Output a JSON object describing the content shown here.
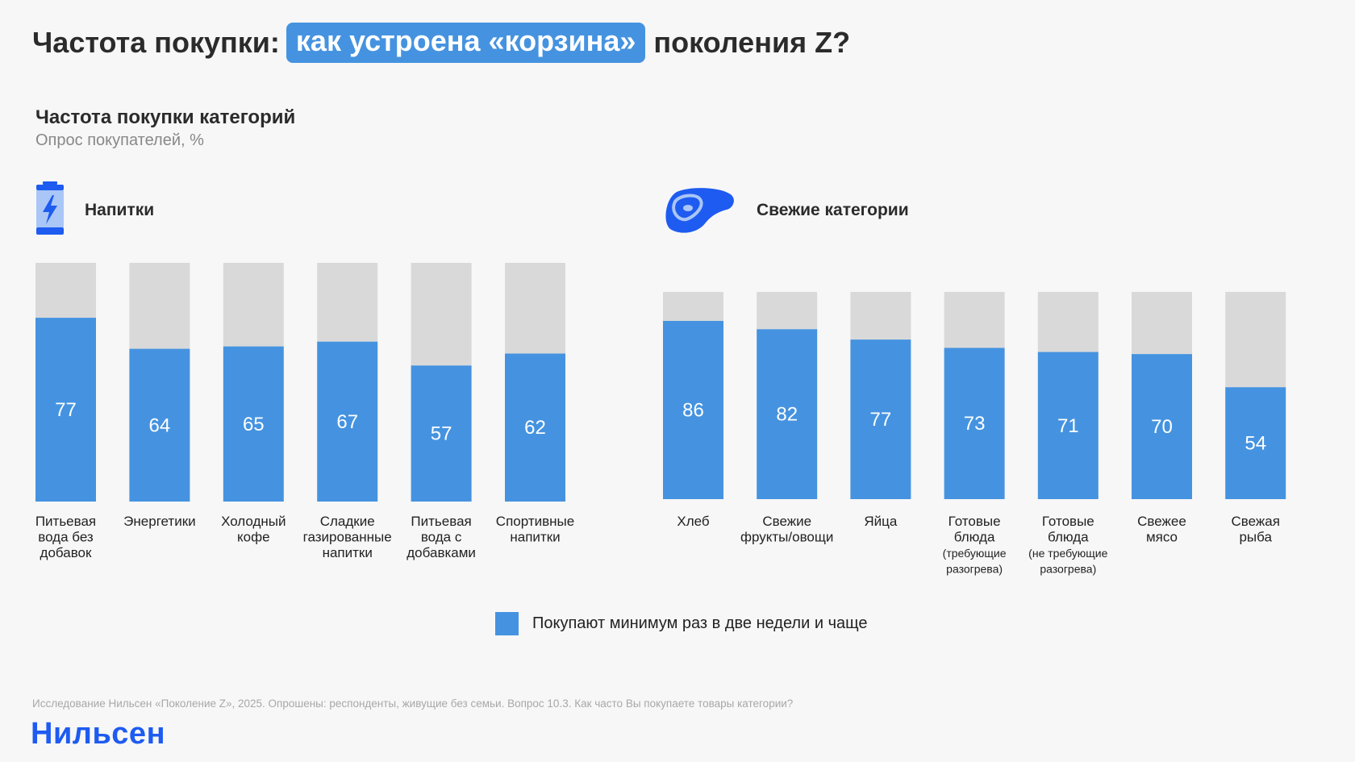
{
  "header": {
    "prefix": "Частота покупки:",
    "highlight": "как устроена «корзина»",
    "suffix": "поколения Z?"
  },
  "chart_title": "Частота покупки категорий",
  "chart_subtitle": "Опрос покупателей, %",
  "groups": {
    "drinks": {
      "title": "Напитки",
      "icon": "energy-drink-can-icon"
    },
    "fresh": {
      "title": "Свежие категории",
      "icon": "steak-icon"
    }
  },
  "colors": {
    "filled": "#4593e0",
    "remainder": "#d9d9d9",
    "accent": "#1e5bf0"
  },
  "chart_data": [
    {
      "type": "bar",
      "stacked": true,
      "title": "Напитки",
      "categories": [
        [
          "Питьевая",
          "вода без",
          "добавок"
        ],
        [
          "Энергетики"
        ],
        [
          "Холодный",
          "кофе"
        ],
        [
          "Сладкие",
          "газированные",
          "напитки"
        ],
        [
          "Питьевая",
          "вода с",
          "добавками"
        ],
        [
          "Спортивные",
          "напитки"
        ]
      ],
      "series": [
        {
          "name": "Покупают минимум раз в две недели и чаще",
          "values": [
            77,
            64,
            65,
            67,
            57,
            62
          ]
        }
      ],
      "ylim": [
        0,
        100
      ]
    },
    {
      "type": "bar",
      "stacked": true,
      "title": "Свежие категории",
      "categories": [
        [
          "Хлеб"
        ],
        [
          "Свежие",
          "фрукты/овощи"
        ],
        [
          "Яйца"
        ],
        [
          "Готовые",
          "блюда",
          "(требующие",
          "разогрева)"
        ],
        [
          "Готовые",
          "блюда",
          "(не требующие",
          "разогрева)"
        ],
        [
          "Свежее",
          "мясо"
        ],
        [
          "Свежая",
          "рыба"
        ]
      ],
      "series": [
        {
          "name": "Покупают минимум раз в две недели и чаще",
          "values": [
            86,
            82,
            77,
            73,
            71,
            70,
            54
          ]
        }
      ],
      "ylim": [
        0,
        100
      ]
    }
  ],
  "legend": {
    "label": "Покупают минимум раз в две недели и чаще"
  },
  "footnote": "Исследование Нильсен «Поколение Z», 2025. Опрошены: респонденты, живущие без семьи. Вопрос 10.3. Как часто Вы покупаете товары категории?",
  "brand": "Нильсен"
}
